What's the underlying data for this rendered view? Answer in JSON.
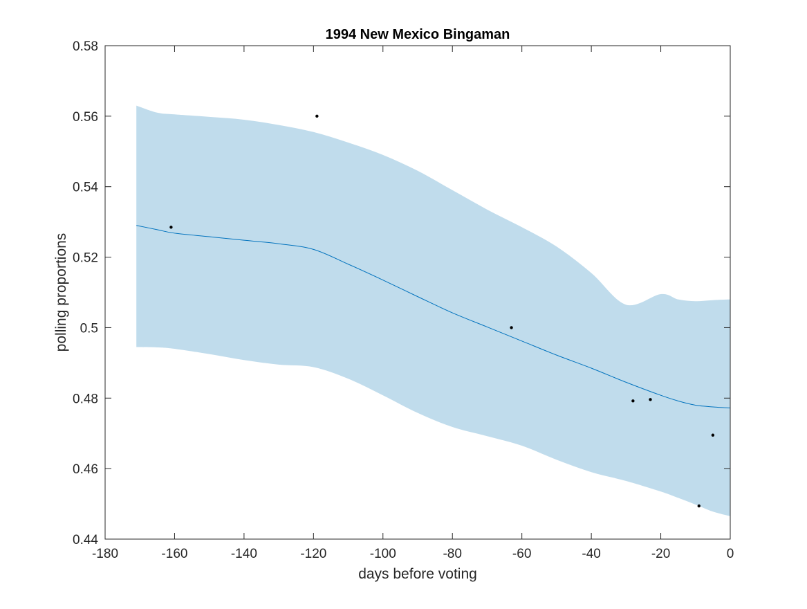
{
  "chart_data": {
    "type": "line",
    "title": "1994 New Mexico Bingaman",
    "xlabel": "days before voting",
    "ylabel": "polling proportions",
    "xlim": [
      -180,
      0
    ],
    "ylim": [
      0.44,
      0.58
    ],
    "xticks": [
      -180,
      -160,
      -140,
      -120,
      -100,
      -80,
      -60,
      -40,
      -20,
      0
    ],
    "xtick_labels": [
      "-180",
      "-160",
      "-140",
      "-120",
      "-100",
      "-80",
      "-60",
      "-40",
      "-20",
      "0"
    ],
    "yticks": [
      0.44,
      0.46,
      0.48,
      0.5,
      0.52,
      0.54,
      0.56,
      0.58
    ],
    "ytick_labels": [
      "0.44",
      "0.46",
      "0.48",
      "0.5",
      "0.52",
      "0.54",
      "0.56",
      "0.58"
    ],
    "grid": false,
    "series": [
      {
        "kind": "band",
        "color": "#c0dcec",
        "x": [
          -171,
          -165,
          -160,
          -150,
          -140,
          -130,
          -120,
          -110,
          -100,
          -90,
          -80,
          -70,
          -60,
          -50,
          -40,
          -30,
          -20,
          -15,
          -10,
          -5,
          0
        ],
        "upper": [
          0.563,
          0.561,
          0.5605,
          0.5598,
          0.559,
          0.5575,
          0.5555,
          0.5525,
          0.549,
          0.5445,
          0.539,
          0.5335,
          0.5285,
          0.523,
          0.5155,
          0.5065,
          0.5095,
          0.508,
          0.5075,
          0.5078,
          0.508
        ],
        "lower": [
          0.4945,
          0.4944,
          0.494,
          0.4925,
          0.4908,
          0.4895,
          0.4888,
          0.4855,
          0.4808,
          0.4758,
          0.4718,
          0.4692,
          0.4665,
          0.4625,
          0.459,
          0.4565,
          0.4535,
          0.4517,
          0.4498,
          0.4478,
          0.4465
        ]
      },
      {
        "kind": "line",
        "color": "#0072bd",
        "x": [
          -171,
          -165,
          -160,
          -150,
          -140,
          -130,
          -120,
          -110,
          -100,
          -90,
          -80,
          -70,
          -60,
          -50,
          -40,
          -30,
          -20,
          -15,
          -10,
          -5,
          0
        ],
        "y": [
          0.529,
          0.5278,
          0.5268,
          0.5258,
          0.5248,
          0.5238,
          0.5222,
          0.518,
          0.5135,
          0.5088,
          0.5042,
          0.5002,
          0.4962,
          0.4922,
          0.4885,
          0.4845,
          0.4808,
          0.4792,
          0.478,
          0.4775,
          0.4772
        ]
      },
      {
        "kind": "scatter",
        "color": "#000000",
        "x": [
          -161,
          -119,
          -63,
          -28,
          -23,
          -9,
          -5
        ],
        "y": [
          0.5285,
          0.56,
          0.5,
          0.4792,
          0.4796,
          0.4494,
          0.4695
        ]
      }
    ]
  }
}
